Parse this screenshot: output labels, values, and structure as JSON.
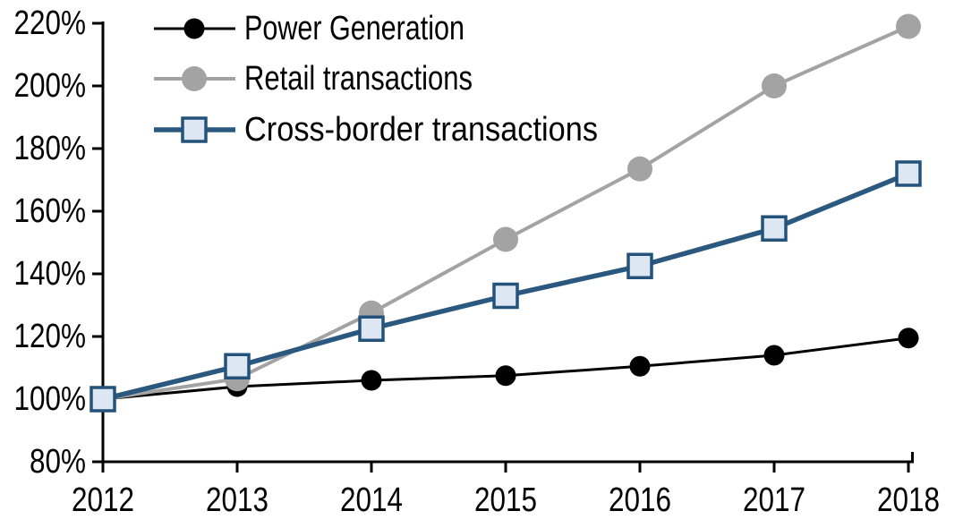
{
  "chart_data": {
    "type": "line",
    "title": "",
    "xlabel": "",
    "ylabel": "",
    "categories": [
      "2012",
      "2013",
      "2014",
      "2015",
      "2016",
      "2017",
      "2018"
    ],
    "series": [
      {
        "name": "Power Generation",
        "values": [
          100,
          104,
          106,
          107.5,
          110.5,
          114,
          119.5
        ],
        "color": "#000000",
        "marker": "circle",
        "marker_fill": "#000000"
      },
      {
        "name": "Retail transactions",
        "values": [
          100,
          106.5,
          127.5,
          151,
          173.5,
          200,
          219
        ],
        "color": "#a3a3a3",
        "marker": "circle",
        "marker_fill": "#a3a3a3"
      },
      {
        "name": "Cross-border transactions",
        "values": [
          100,
          110.5,
          122.5,
          133,
          142.5,
          154.5,
          172
        ],
        "color": "#2a587f",
        "marker": "square",
        "marker_fill": "#dce7f3",
        "marker_stroke": "#24527b"
      }
    ],
    "ylim": [
      80,
      220
    ],
    "ytick_step": 20,
    "ytick_format": "percent",
    "xlim": [
      "2012",
      "2018"
    ],
    "grid": false,
    "legend_position": "top-left",
    "axis_color": "#000000",
    "background_color": "#ffffff"
  }
}
